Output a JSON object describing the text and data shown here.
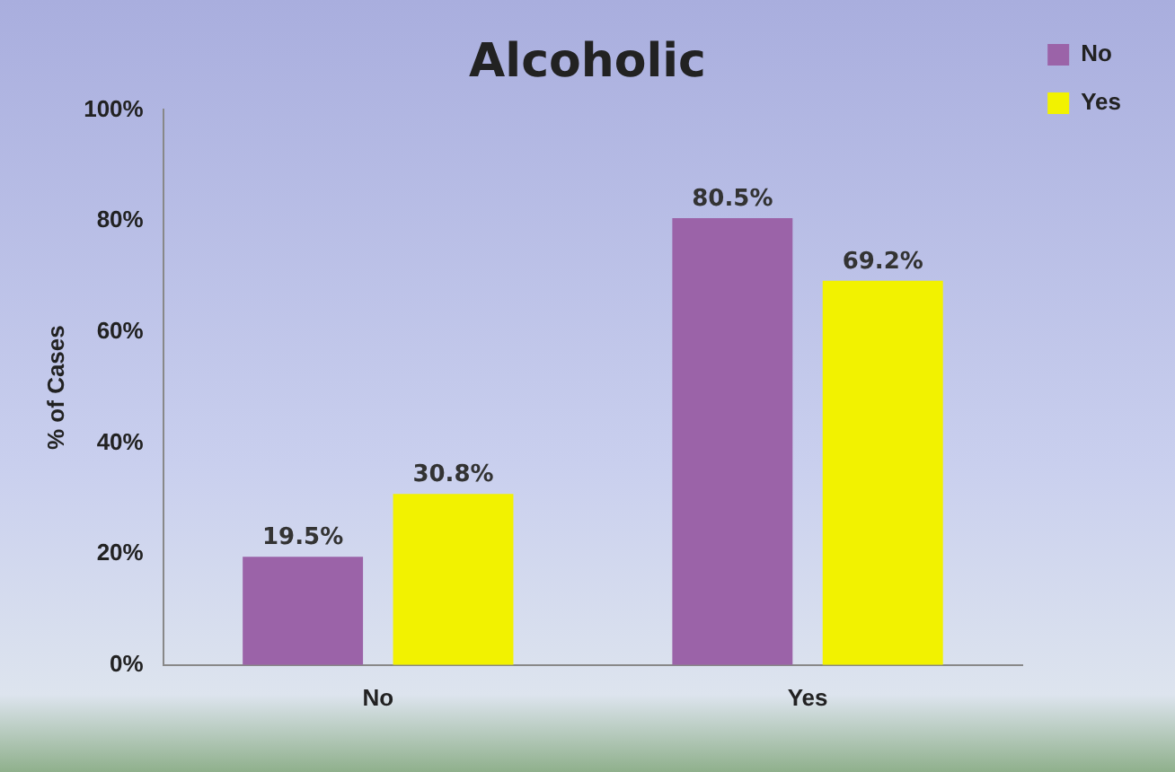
{
  "chart_data": {
    "type": "bar",
    "title": "Alcoholic",
    "ylabel": "% of Cases",
    "categories": [
      "No",
      "Yes"
    ],
    "series": [
      {
        "name": "No",
        "color": "#9b63a8",
        "values": [
          19.5,
          80.5
        ],
        "value_labels": [
          "19.5%",
          "80.5%"
        ]
      },
      {
        "name": "Yes",
        "color": "#f2f200",
        "values": [
          30.8,
          69.2
        ],
        "value_labels": [
          "30.8%",
          "69.2%"
        ]
      }
    ],
    "ylim": [
      0,
      100
    ],
    "yticks": [
      {
        "value": 0,
        "label": "0%"
      },
      {
        "value": 20,
        "label": "20%"
      },
      {
        "value": 40,
        "label": "40%"
      },
      {
        "value": 60,
        "label": "60%"
      },
      {
        "value": 80,
        "label": "80%"
      },
      {
        "value": 100,
        "label": "100%"
      }
    ],
    "grid": false,
    "legend": "top right"
  }
}
